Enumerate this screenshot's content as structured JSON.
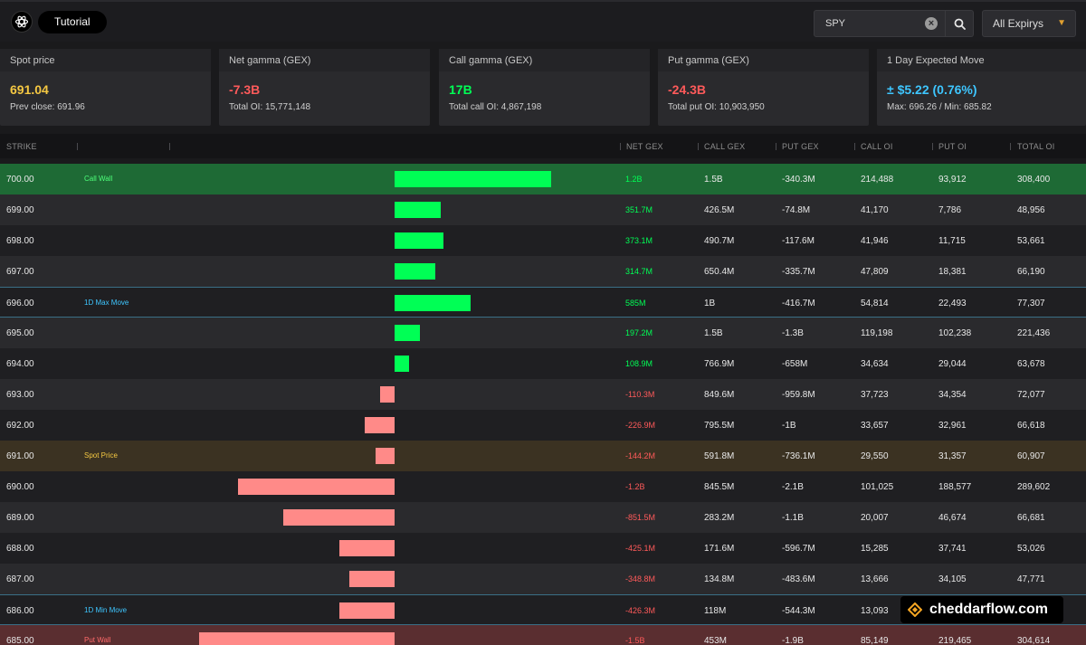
{
  "header": {
    "tutorial_label": "Tutorial",
    "search_value": "SPY",
    "expiry_label": "All Expirys"
  },
  "cards": [
    {
      "title": "Spot price",
      "value": "691.04",
      "sub": "Prev close: 691.96",
      "color": "#f5c842"
    },
    {
      "title": "Net gamma (GEX)",
      "value": "-7.3B",
      "sub": "Total OI: 15,771,148",
      "color": "#ff5a5a"
    },
    {
      "title": "Call gamma (GEX)",
      "value": "17B",
      "sub": "Total call OI: 4,867,198",
      "color": "#00ff55"
    },
    {
      "title": "Put gamma (GEX)",
      "value": "-24.3B",
      "sub": "Total put OI: 10,903,950",
      "color": "#ff5a5a"
    },
    {
      "title": "1 Day Expected Move",
      "value": "± $5.22 (0.76%)",
      "sub": "Max: 696.26 / Min: 685.82",
      "color": "#3ec6ff"
    }
  ],
  "table": {
    "columns": {
      "strike": "STRIKE",
      "net_gex": "NET GEX",
      "call_gex": "CALL GEX",
      "put_gex": "PUT GEX",
      "call_oi": "CALL OI",
      "put_oi": "PUT OI",
      "total_oi": "TOTAL OI"
    },
    "rows": [
      {
        "strike": "700.00",
        "label": "Call Wall",
        "net_gex": "1.2B",
        "net_value_m": 1200,
        "call_gex": "1.5B",
        "put_gex": "-340.3M",
        "call_oi": "214,488",
        "put_oi": "93,912",
        "total_oi": "308,400",
        "style": "wall-call",
        "label_class": "lbl-green"
      },
      {
        "strike": "699.00",
        "label": "",
        "net_gex": "351.7M",
        "net_value_m": 351.7,
        "call_gex": "426.5M",
        "put_gex": "-74.8M",
        "call_oi": "41,170",
        "put_oi": "7,786",
        "total_oi": "48,956",
        "style": "light"
      },
      {
        "strike": "698.00",
        "label": "",
        "net_gex": "373.1M",
        "net_value_m": 373.1,
        "call_gex": "490.7M",
        "put_gex": "-117.6M",
        "call_oi": "41,946",
        "put_oi": "11,715",
        "total_oi": "53,661",
        "style": "dark"
      },
      {
        "strike": "697.00",
        "label": "",
        "net_gex": "314.7M",
        "net_value_m": 314.7,
        "call_gex": "650.4M",
        "put_gex": "-335.7M",
        "call_oi": "47,809",
        "put_oi": "18,381",
        "total_oi": "66,190",
        "style": "light"
      },
      {
        "strike": "696.00",
        "label": "1D Max Move",
        "net_gex": "585M",
        "net_value_m": 585,
        "call_gex": "1B",
        "put_gex": "-416.7M",
        "call_oi": "54,814",
        "put_oi": "22,493",
        "total_oi": "77,307",
        "style": "dark maxmove",
        "label_class": "lbl-blue"
      },
      {
        "strike": "695.00",
        "label": "",
        "net_gex": "197.2M",
        "net_value_m": 197.2,
        "call_gex": "1.5B",
        "put_gex": "-1.3B",
        "call_oi": "119,198",
        "put_oi": "102,238",
        "total_oi": "221,436",
        "style": "light"
      },
      {
        "strike": "694.00",
        "label": "",
        "net_gex": "108.9M",
        "net_value_m": 108.9,
        "call_gex": "766.9M",
        "put_gex": "-658M",
        "call_oi": "34,634",
        "put_oi": "29,044",
        "total_oi": "63,678",
        "style": "dark"
      },
      {
        "strike": "693.00",
        "label": "",
        "net_gex": "-110.3M",
        "net_value_m": -110.3,
        "call_gex": "849.6M",
        "put_gex": "-959.8M",
        "call_oi": "37,723",
        "put_oi": "34,354",
        "total_oi": "72,077",
        "style": "light"
      },
      {
        "strike": "692.00",
        "label": "",
        "net_gex": "-226.9M",
        "net_value_m": -226.9,
        "call_gex": "795.5M",
        "put_gex": "-1B",
        "call_oi": "33,657",
        "put_oi": "32,961",
        "total_oi": "66,618",
        "style": "dark"
      },
      {
        "strike": "691.00",
        "label": "Spot Price",
        "net_gex": "-144.2M",
        "net_value_m": -144.2,
        "call_gex": "591.8M",
        "put_gex": "-736.1M",
        "call_oi": "29,550",
        "put_oi": "31,357",
        "total_oi": "60,907",
        "style": "spot",
        "label_class": "lbl-yellow"
      },
      {
        "strike": "690.00",
        "label": "",
        "net_gex": "-1.2B",
        "net_value_m": -1200,
        "call_gex": "845.5M",
        "put_gex": "-2.1B",
        "call_oi": "101,025",
        "put_oi": "188,577",
        "total_oi": "289,602",
        "style": "dark"
      },
      {
        "strike": "689.00",
        "label": "",
        "net_gex": "-851.5M",
        "net_value_m": -851.5,
        "call_gex": "283.2M",
        "put_gex": "-1.1B",
        "call_oi": "20,007",
        "put_oi": "46,674",
        "total_oi": "66,681",
        "style": "light"
      },
      {
        "strike": "688.00",
        "label": "",
        "net_gex": "-425.1M",
        "net_value_m": -425.1,
        "call_gex": "171.6M",
        "put_gex": "-596.7M",
        "call_oi": "15,285",
        "put_oi": "37,741",
        "total_oi": "53,026",
        "style": "dark"
      },
      {
        "strike": "687.00",
        "label": "",
        "net_gex": "-348.8M",
        "net_value_m": -348.8,
        "call_gex": "134.8M",
        "put_gex": "-483.6M",
        "call_oi": "13,666",
        "put_oi": "34,105",
        "total_oi": "47,771",
        "style": "light"
      },
      {
        "strike": "686.00",
        "label": "1D Min Move",
        "net_gex": "-426.3M",
        "net_value_m": -426.3,
        "call_gex": "118M",
        "put_gex": "-544.3M",
        "call_oi": "13,093",
        "put_oi": "",
        "total_oi": "",
        "style": "dark maxmove",
        "label_class": "lbl-blue"
      },
      {
        "strike": "685.00",
        "label": "Put Wall",
        "net_gex": "-1.5B",
        "net_value_m": -1500,
        "call_gex": "453M",
        "put_gex": "-1.9B",
        "call_oi": "85,149",
        "put_oi": "219,465",
        "total_oi": "304,614",
        "style": "wall-put",
        "label_class": "lbl-red"
      }
    ]
  },
  "watermark": {
    "text": "cheddarflow.com"
  }
}
